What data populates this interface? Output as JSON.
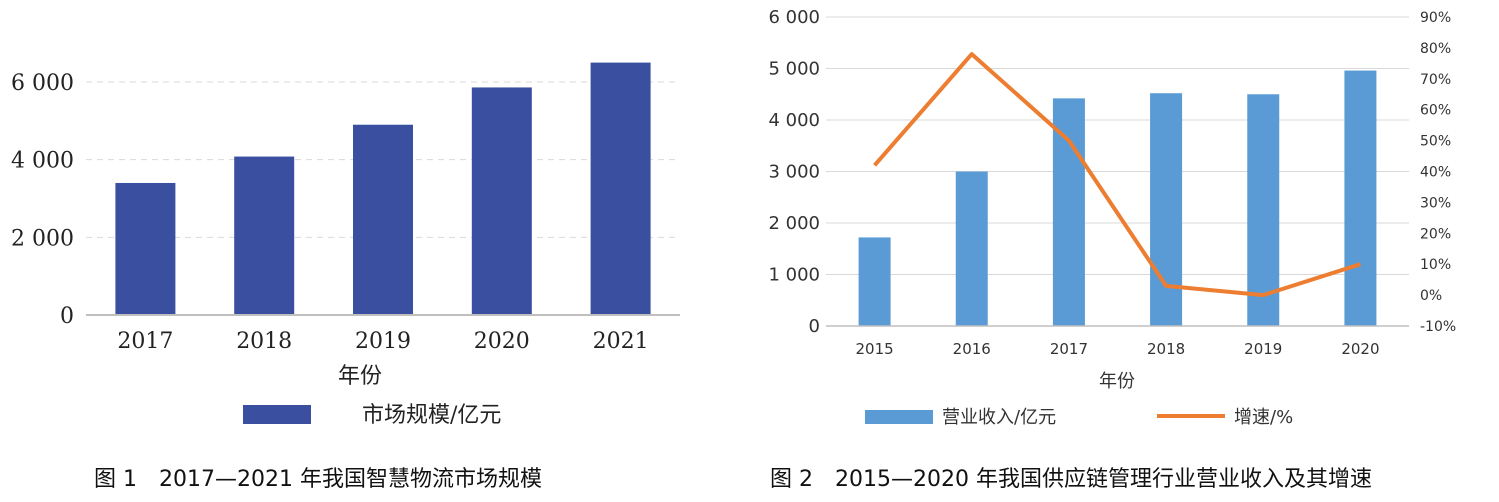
{
  "chart_data": [
    {
      "type": "bar",
      "caption": "图 1　2017—2021 年我国智慧物流市场规模",
      "xlabel": "年份",
      "ylabel": "",
      "categories": [
        "2017",
        "2018",
        "2019",
        "2020",
        "2021"
      ],
      "series": [
        {
          "name": "市场规模/亿元",
          "values": [
            3400,
            4080,
            4900,
            5860,
            6500
          ]
        }
      ],
      "ylim": [
        0,
        6000
      ],
      "yticks": [
        0,
        2000,
        4000,
        6000
      ],
      "ytick_labels": [
        "0",
        "2 000",
        "4 000",
        "6 000"
      ],
      "grid": true,
      "legend": "bottom",
      "colors": {
        "bar": "#3A4FA0",
        "axis": "#bfbfbf",
        "grid": "#d9d9d9"
      }
    },
    {
      "type": "bar+line",
      "caption": "图 2　2015—2020 年我国供应链管理行业营业收入及其增速",
      "xlabel": "年份",
      "categories": [
        "2015",
        "2016",
        "2017",
        "2018",
        "2019",
        "2020"
      ],
      "series": [
        {
          "name": "营业收入/亿元",
          "type": "bar",
          "axis": "left",
          "values": [
            1720,
            3000,
            4420,
            4520,
            4500,
            4960
          ]
        },
        {
          "name": "增速/%",
          "type": "line",
          "axis": "right",
          "values": [
            42,
            78,
            50,
            3,
            0,
            10
          ]
        }
      ],
      "ylim_left": [
        0,
        6000
      ],
      "yticks_left": [
        0,
        1000,
        2000,
        3000,
        4000,
        5000,
        6000
      ],
      "ytick_labels_left": [
        "0",
        "1 000",
        "2 000",
        "3 000",
        "4 000",
        "5 000",
        "6 000"
      ],
      "ylim_right": [
        -10,
        90
      ],
      "yticks_right": [
        -10,
        0,
        10,
        20,
        30,
        40,
        50,
        60,
        70,
        80,
        90
      ],
      "ytick_labels_right": [
        "-10%",
        "0%",
        "10%",
        "20%",
        "30%",
        "40%",
        "50%",
        "60%",
        "70%",
        "80%",
        "90%"
      ],
      "grid": true,
      "legend": "bottom",
      "colors": {
        "bar": "#5B9BD5",
        "line": "#ED7D31",
        "axis": "#bfbfbf",
        "grid": "#d9d9d9"
      }
    }
  ]
}
